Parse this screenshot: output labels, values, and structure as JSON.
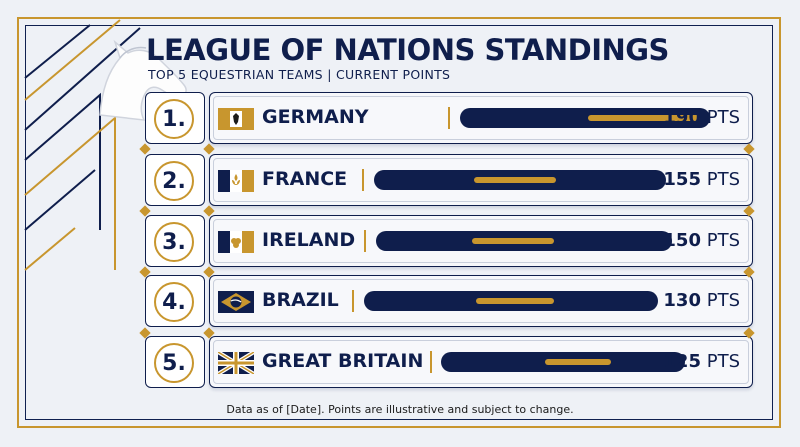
{
  "header": {
    "title": "LEAGUE OF NATIONS STANDINGS",
    "subtitle": "TOP 5 EQUESTRIAN TEAMS | CURRENT POINTS"
  },
  "colors": {
    "navy": "#0f1e4c",
    "gold": "#c8962e",
    "background": "#eef1f6"
  },
  "max_points": 190,
  "teams": [
    {
      "rank": "1.",
      "name": "GERMANY",
      "points": "190",
      "unit": "PTS",
      "flag": "germany-flag-icon",
      "value": 190
    },
    {
      "rank": "2.",
      "name": "FRANCE",
      "points": "155",
      "unit": "PTS",
      "flag": "france-flag-icon",
      "value": 155
    },
    {
      "rank": "3.",
      "name": "IRELAND",
      "points": "150",
      "unit": "PTS",
      "flag": "ireland-flag-icon",
      "value": 150
    },
    {
      "rank": "4.",
      "name": "BRAZIL",
      "points": "130",
      "unit": "PTS",
      "flag": "brazil-flag-icon",
      "value": 130
    },
    {
      "rank": "5.",
      "name": "GREAT BRITAIN",
      "points": "125",
      "unit": "PTS",
      "flag": "great-britain-flag-icon",
      "value": 125
    }
  ],
  "logo": "horse-head-icon",
  "footnote": "Data as of [Date]. Points are illustrative and subject to change."
}
